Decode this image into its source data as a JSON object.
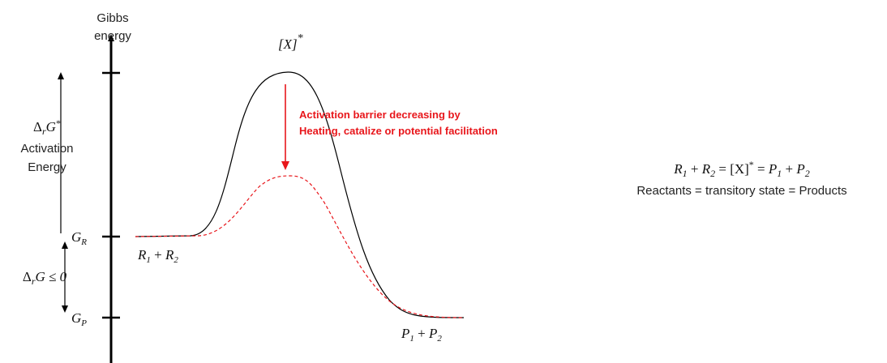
{
  "axis": {
    "label_lines": [
      "Gibbs",
      "energy"
    ]
  },
  "transition_state": {
    "text": "[X]",
    "sup": "*"
  },
  "activation_energy": {
    "symbol": {
      "pre": "Δ",
      "sub": "r",
      "post": "G",
      "sup": "*"
    },
    "lines": [
      "Activation",
      "Energy"
    ]
  },
  "levels": {
    "reactant": {
      "base": "G",
      "sub": "R"
    },
    "product": {
      "base": "G",
      "sub": "P"
    }
  },
  "reaction_energy": {
    "pre": "Δ",
    "sub": "r",
    "post": "G ≤ 0"
  },
  "reactants": {
    "a": "R",
    "a_sub": "1",
    "op": " + ",
    "b": "R",
    "b_sub": "2"
  },
  "products": {
    "a": "P",
    "a_sub": "1",
    "op": " + ",
    "b": "P",
    "b_sub": "2"
  },
  "annotation": {
    "lines": [
      "Activation barrier decreasing by",
      "Heating, catalize or potential facilitation"
    ]
  },
  "equation": {
    "r1": "R",
    "r1_sub": "1",
    "plus1": " + ",
    "r2": "R",
    "r2_sub": "2",
    "eq1": " = ",
    "x": "[X]",
    "x_sup": "*",
    "eq2": " = ",
    "p1": "P",
    "p1_sub": "1",
    "plus2": " + ",
    "p2": "P",
    "p2_sub": "2",
    "caption": "Reactants = transitory state = Products"
  }
}
